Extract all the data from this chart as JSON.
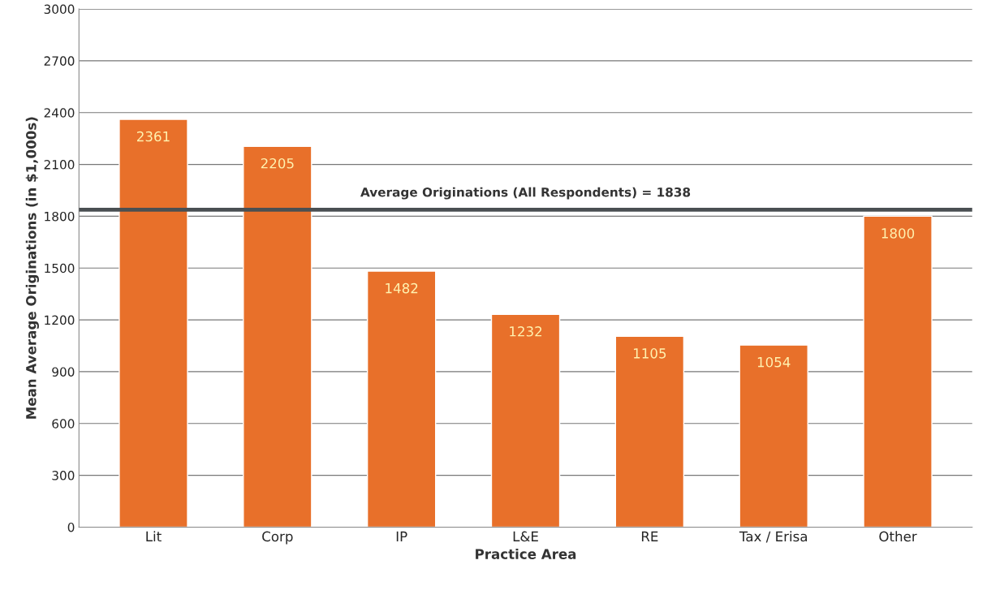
{
  "chart_data": {
    "type": "bar",
    "xlabel": "Practice Area",
    "ylabel": "Mean Average Originations (in $1,000s)",
    "categories": [
      "Lit",
      "Corp",
      "IP",
      "L&E",
      "RE",
      "Tax / Erisa",
      "Other"
    ],
    "values": [
      2361,
      2205,
      1482,
      1232,
      1105,
      1054,
      1800
    ],
    "color": "#e8702a",
    "ylim": [
      0,
      3000
    ],
    "yticks": [
      0,
      300,
      600,
      900,
      1200,
      1500,
      1800,
      2100,
      2400,
      2700,
      3000
    ],
    "grid": "y",
    "data_labels": true,
    "legend": false,
    "ref_lines": [
      {
        "axis": "y",
        "value": 1838,
        "label": "Average Originations (All Respondents) = 1838",
        "color": "#4a4f52"
      }
    ]
  }
}
